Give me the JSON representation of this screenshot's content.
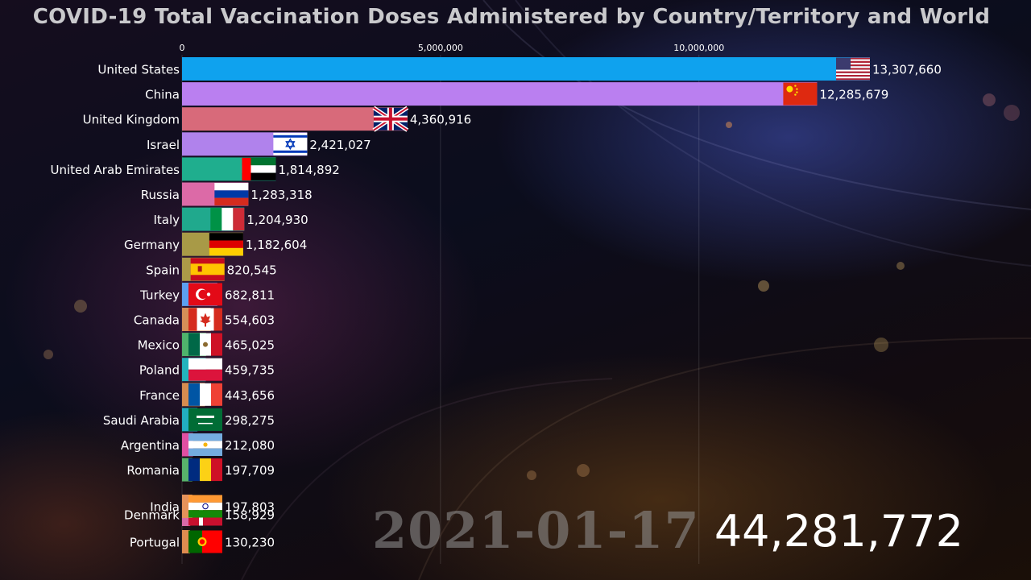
{
  "title": "COVID-19 Total Vaccination Doses Administered by Country/Territory and World",
  "date": "2021-01-17",
  "world_total": "44,281,772",
  "chart_data": {
    "type": "bar",
    "orientation": "horizontal",
    "title": "COVID-19 Total Vaccination Doses Administered by Country/Territory and World",
    "xlim": [
      0,
      13307660
    ],
    "x_ticks": [
      0,
      5000000,
      10000000
    ],
    "x_tick_labels": [
      "0",
      "5,000,000",
      "10,000,000"
    ],
    "grid": true,
    "axis_position": "top",
    "bars": [
      {
        "country": "United States",
        "value": 13307660,
        "label": "13,307,660",
        "color": "#0fa2ee",
        "flag": "us"
      },
      {
        "country": "China",
        "value": 12285679,
        "label": "12,285,679",
        "color": "#ba7ff0",
        "flag": "cn"
      },
      {
        "country": "United Kingdom",
        "value": 4360916,
        "label": "4,360,916",
        "color": "#d86a7a",
        "flag": "gb"
      },
      {
        "country": "Israel",
        "value": 2421027,
        "label": "2,421,027",
        "color": "#b082ec",
        "flag": "il"
      },
      {
        "country": "United Arab Emirates",
        "value": 1814892,
        "label": "1,814,892",
        "color": "#1fae8e",
        "flag": "ae"
      },
      {
        "country": "Russia",
        "value": 1283318,
        "label": "1,283,318",
        "color": "#dc6aa7",
        "flag": "ru"
      },
      {
        "country": "Italy",
        "value": 1204930,
        "label": "1,204,930",
        "color": "#20a98d",
        "flag": "it"
      },
      {
        "country": "Germany",
        "value": 1182604,
        "label": "1,182,604",
        "color": "#a89a47",
        "flag": "de"
      },
      {
        "country": "Spain",
        "value": 820545,
        "label": "820,545",
        "color": "#ac9a48",
        "flag": "es"
      },
      {
        "country": "Turkey",
        "value": 682811,
        "label": "682,811",
        "color": "#5c9ff0",
        "flag": "tr"
      },
      {
        "country": "Canada",
        "value": 554603,
        "label": "554,603",
        "color": "#d68e58",
        "flag": "ca"
      },
      {
        "country": "Mexico",
        "value": 465025,
        "label": "465,025",
        "color": "#4fb36c",
        "flag": "mx"
      },
      {
        "country": "Poland",
        "value": 459735,
        "label": "459,735",
        "color": "#23b3bd",
        "flag": "pl"
      },
      {
        "country": "France",
        "value": 443656,
        "label": "443,656",
        "color": "#d68c50",
        "flag": "fr"
      },
      {
        "country": "Saudi Arabia",
        "value": 298275,
        "label": "298,275",
        "color": "#22adc0",
        "flag": "sa"
      },
      {
        "country": "Argentina",
        "value": 212080,
        "label": "212,080",
        "color": "#e04fa3",
        "flag": "ar"
      },
      {
        "country": "Romania",
        "value": 197709,
        "label": "197,709",
        "color": "#58b36b",
        "flag": "ro"
      },
      {
        "country": "India",
        "value": 197803,
        "label": "197,803",
        "color": "#e5925a",
        "flag": "in"
      },
      {
        "country": "Denmark",
        "value": 158929,
        "label": "158,929",
        "color": "#d86aa7",
        "flag": "dk"
      },
      {
        "country": "Portugal",
        "value": 130230,
        "label": "130,230",
        "color": "#df8c50",
        "flag": "pt"
      }
    ]
  }
}
